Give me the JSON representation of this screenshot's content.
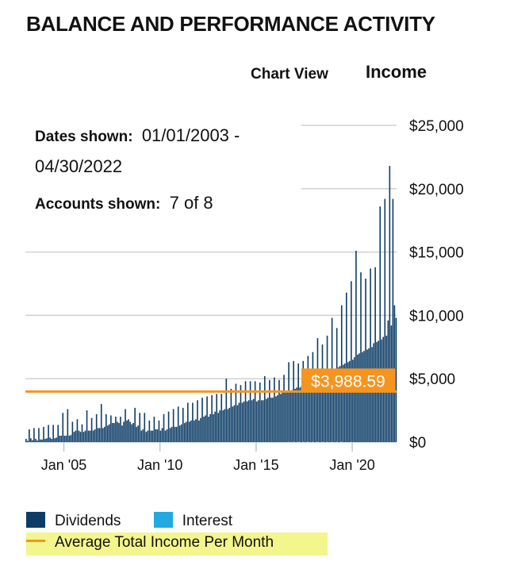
{
  "header": {
    "title": "BALANCE AND PERFORMANCE ACTIVITY",
    "chart_view_label": "Chart View",
    "view_selected": "Income"
  },
  "info": {
    "dates_label": "Dates shown:",
    "dates_value_start": "01/01/2003 -",
    "dates_value_end": "04/30/2022",
    "accounts_label": "Accounts shown:",
    "accounts_value": "7 of 8"
  },
  "colors": {
    "dividends": "#0d3d66",
    "interest": "#22a9e0",
    "average": "#f5951f",
    "grid": "#d0d0d0",
    "highlight": "#f3f68c"
  },
  "chart_data": {
    "type": "bar",
    "title": "Income",
    "xlabel": "",
    "ylabel": "",
    "ylim": [
      0,
      25000
    ],
    "yticks": [
      0,
      5000,
      10000,
      15000,
      20000,
      25000
    ],
    "ytick_labels": [
      "$0",
      "$5,000",
      "$10,000",
      "$15,000",
      "$20,000",
      "$25,000"
    ],
    "xtick_labels": [
      "Jan '05",
      "Jan '10",
      "Jan '15",
      "Jan '20"
    ],
    "xtick_months": [
      24,
      84,
      144,
      204
    ],
    "start": "2003-01",
    "grid": true,
    "average_total_income_per_month": 3988.59,
    "average_label": "$3,988.59",
    "legend": [
      "Dividends",
      "Interest",
      "Average Total Income Per Month"
    ],
    "legend_position": "bottom-left",
    "series": [
      {
        "name": "Dividends",
        "values_by_year": {
          "2003": [
            250,
            100,
            1000,
            300,
            150,
            1100,
            250,
            120,
            1100,
            200,
            200,
            1200
          ],
          "2004": [
            250,
            300,
            1350,
            350,
            250,
            1350,
            300,
            350,
            1350,
            500,
            500,
            2300
          ],
          "2005": [
            500,
            500,
            2600,
            500,
            550,
            1600,
            800,
            900,
            1800,
            900,
            800,
            1400
          ],
          "2006": [
            800,
            900,
            2500,
            900,
            900,
            1900,
            900,
            1000,
            2200,
            1100,
            1100,
            3000
          ],
          "2007": [
            1100,
            1200,
            2200,
            1300,
            1400,
            2100,
            1500,
            1500,
            2000,
            1600,
            1500,
            2000
          ],
          "2008": [
            1300,
            1600,
            2600,
            1700,
            1800,
            1600,
            1400,
            1500,
            2700,
            1200,
            1300,
            2300
          ],
          "2009": [
            900,
            1000,
            2300,
            800,
            900,
            1700,
            900,
            900,
            2000,
            1000,
            1000,
            1700
          ],
          "2010": [
            900,
            1100,
            2200,
            900,
            1000,
            2400,
            1100,
            1200,
            2600,
            1200,
            1200,
            2800
          ],
          "2011": [
            1300,
            1400,
            2700,
            1500,
            1600,
            3100,
            1600,
            1700,
            3100,
            1700,
            1800,
            3300
          ],
          "2012": [
            1700,
            1900,
            3500,
            2000,
            2100,
            3600,
            2000,
            2200,
            3700,
            2200,
            2400,
            3800
          ],
          "2013": [
            2300,
            2500,
            3800,
            2500,
            2600,
            5000,
            2600,
            2700,
            4200,
            2800,
            2900,
            4600
          ],
          "2014": [
            2900,
            3100,
            4500,
            3100,
            3200,
            4800,
            3200,
            3300,
            4800,
            3300,
            3400,
            4800
          ],
          "2015": [
            3200,
            3300,
            4700,
            3300,
            3300,
            5200,
            3400,
            3500,
            4900,
            3500,
            3500,
            5100
          ],
          "2016": [
            3600,
            3700,
            4900,
            3800,
            3900,
            5300,
            3900,
            4000,
            6300,
            4000,
            4100,
            6400
          ],
          "2017": [
            4200,
            4300,
            6200,
            4300,
            4400,
            6400,
            4400,
            4500,
            6800,
            4600,
            4700,
            7100
          ],
          "2018": [
            4700,
            4800,
            8200,
            5000,
            5200,
            7700,
            5100,
            5300,
            8400,
            5400,
            5500,
            9800
          ],
          "2019": [
            5600,
            5800,
            9000,
            5900,
            6000,
            10800,
            6100,
            6200,
            11800,
            6300,
            6400,
            12700
          ],
          "2020": [
            6500,
            6700,
            15100,
            6900,
            7000,
            13400,
            7100,
            7200,
            12900,
            7300,
            7400,
            13700
          ],
          "2021": [
            7500,
            7800,
            13800,
            7900,
            8000,
            18600,
            8100,
            8300,
            19200,
            8400,
            9600,
            21800
          ],
          "2022": [
            9200,
            19200,
            10800,
            9800
          ]
        }
      },
      {
        "name": "Interest",
        "values_by_year": {
          "2016": [
            0,
            0,
            0,
            0,
            0,
            0,
            0,
            0,
            40,
            0,
            0,
            40
          ],
          "2017": [
            0,
            0,
            40,
            0,
            0,
            40,
            0,
            0,
            40,
            0,
            0,
            40
          ],
          "2018": [
            0,
            0,
            40,
            0,
            0,
            40,
            0,
            0,
            40,
            0,
            0,
            40
          ],
          "2019": [
            0,
            0,
            40,
            0,
            0,
            40,
            0,
            0,
            0,
            0,
            0,
            40
          ]
        }
      }
    ]
  }
}
